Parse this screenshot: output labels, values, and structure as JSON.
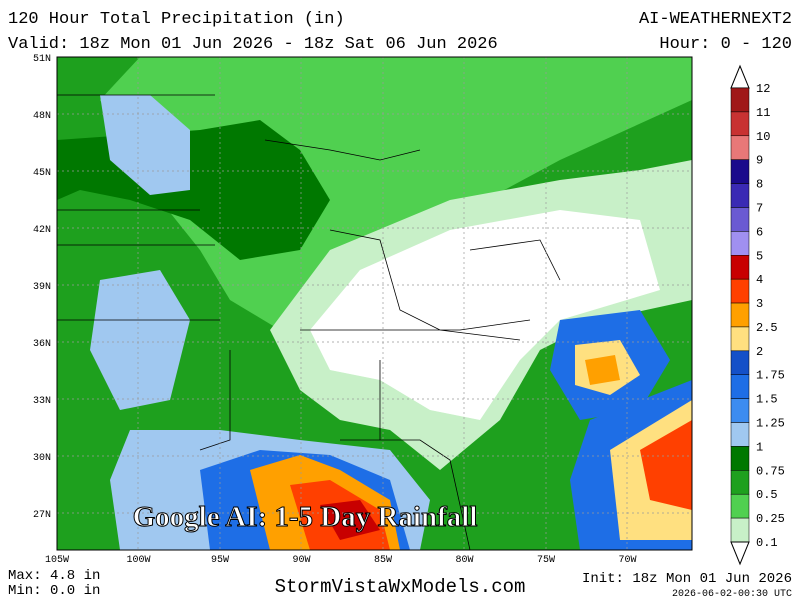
{
  "header": {
    "title": "120 Hour Total Precipitation (in)",
    "model": "AI-WEATHERNEXT2",
    "valid": "Valid: 18z Mon 01 Jun 2026 - 18z Sat 06 Jun 2026",
    "hours": "Hour: 0 - 120"
  },
  "map": {
    "overlay": "Google AI: 1-5 Day Rainfall",
    "lat_labels": [
      "51N",
      "48N",
      "45N",
      "42N",
      "39N",
      "36N",
      "33N",
      "30N",
      "27N"
    ],
    "lon_labels": [
      "105W",
      "100W",
      "95W",
      "90W",
      "85W",
      "80W",
      "75W",
      "70W"
    ]
  },
  "legend": {
    "labels": [
      "12",
      "11",
      "10",
      "9",
      "8",
      "7",
      "6",
      "5",
      "4",
      "3",
      "2.5",
      "2",
      "1.75",
      "1.5",
      "1.25",
      "1",
      "0.75",
      "0.5",
      "0.25",
      "0.1"
    ],
    "colors": [
      "#a01818",
      "#c83232",
      "#e87878",
      "#1a0a8c",
      "#3a2ab4",
      "#6a5ad2",
      "#a090f0",
      "#c80000",
      "#ff4000",
      "#ffa000",
      "#ffe080",
      "#1450c8",
      "#1e6ee6",
      "#3c8cf0",
      "#a0c8f0",
      "#007800",
      "#1ea01e",
      "#50d050",
      "#c8f0c8"
    ]
  },
  "footer": {
    "max": "Max: 4.8 in",
    "min": "Min: 0.0 in",
    "site": "StormVistaWxModels.com",
    "init": "Init: 18z Mon 01 Jun 2026",
    "stamp": "2026-06-02-00:30 UTC"
  }
}
